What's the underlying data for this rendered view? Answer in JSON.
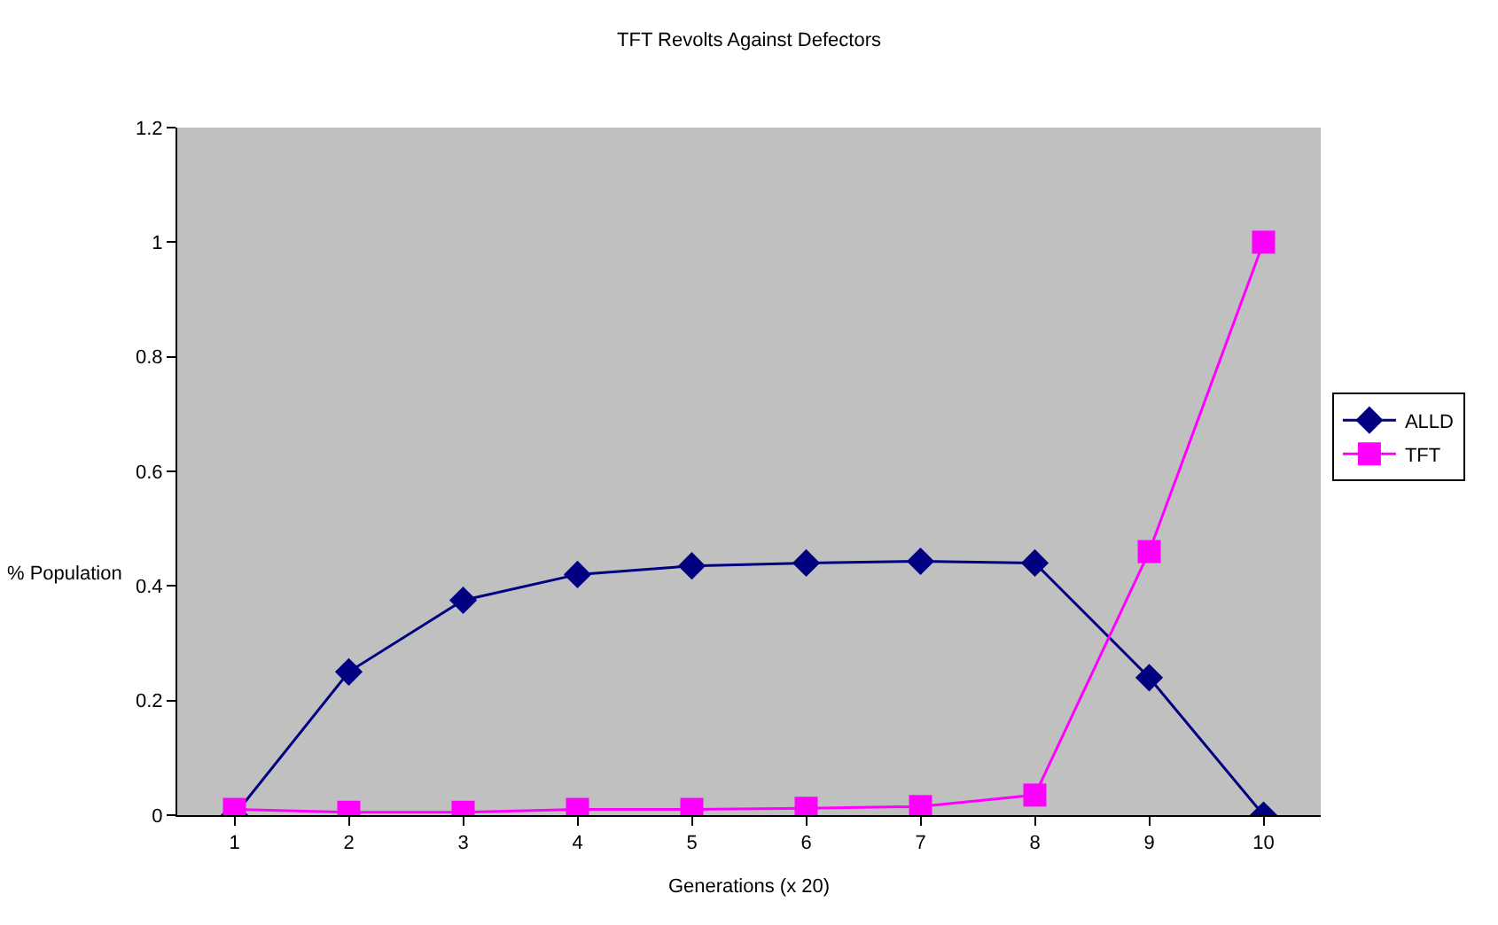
{
  "chart_data": {
    "type": "line",
    "title": "TFT Revolts Against Defectors",
    "xlabel": "Generations (x 20)",
    "ylabel": "% Population",
    "categories": [
      "1",
      "2",
      "3",
      "4",
      "5",
      "6",
      "7",
      "8",
      "9",
      "10"
    ],
    "series": [
      {
        "name": "ALLD",
        "color": "#000080",
        "marker": "diamond",
        "values": [
          0,
          0.25,
          0.375,
          0.42,
          0.435,
          0.44,
          0.443,
          0.44,
          0.24,
          0
        ]
      },
      {
        "name": "TFT",
        "color": "#ff00ff",
        "marker": "square",
        "values": [
          0.01,
          0.005,
          0.005,
          0.01,
          0.01,
          0.012,
          0.015,
          0.035,
          0.46,
          1
        ]
      }
    ],
    "ylim": [
      0,
      1.2
    ],
    "yticks": [
      0,
      0.2,
      0.4,
      0.6,
      0.8,
      1,
      1.2
    ],
    "grid": false,
    "legend": "right"
  }
}
